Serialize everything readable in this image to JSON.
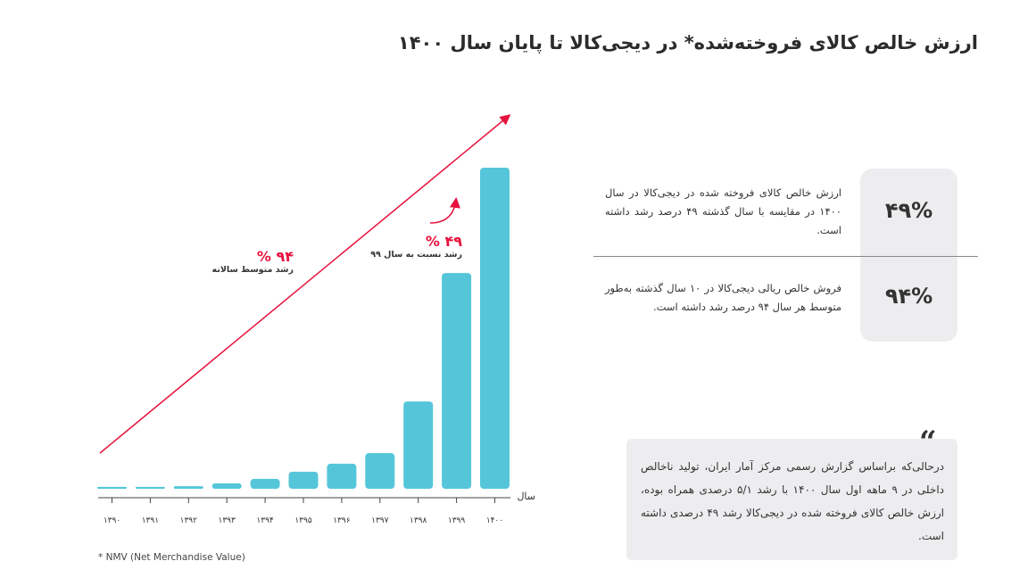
{
  "title": "ارزش خالص کالای فروخته‌شده* در دیجی‌کالا تا پایان سال ۱۴۰۰",
  "chart_data": {
    "type": "bar",
    "categories": [
      "۱۳۹۰",
      "۱۳۹۱",
      "۱۳۹۲",
      "۱۳۹۳",
      "۱۳۹۴",
      "۱۳۹۵",
      "۱۳۹۶",
      "۱۳۹۷",
      "۱۳۹۸",
      "۱۳۹۹",
      "۱۴۰۰"
    ],
    "values": [
      0.6,
      0.6,
      0.8,
      1.7,
      3.1,
      5.3,
      7.8,
      11.1,
      27.2,
      67.2,
      100
    ],
    "xlabel": "سال",
    "ylabel": "",
    "ylim": [
      0,
      100
    ],
    "grid": false,
    "bar_color": "#55c6d9",
    "trend_color": "#e6123d",
    "annotations": [
      {
        "value": "۹۴ %",
        "label": "رشد متوسط سالانه"
      },
      {
        "value": "۴۹ %",
        "label": "رشد نسبت به سال ۹۹"
      }
    ]
  },
  "stats": [
    {
      "value": "۴۹%",
      "text": "ارزش خالص کالای فروخته شده در دیجی‌کالا در سال ۱۴۰۰ در مقایسه با سال گذشته ۴۹ درصد رشد داشته است."
    },
    {
      "value": "۹۴%",
      "text": "فروش خالص ریالی دیجی‌کالا در ۱۰ سال گذشته به‌طور متوسط هر سال ۹۴ درصد رشد داشته است."
    }
  ],
  "quote": {
    "mark": "“",
    "text": "درحالی‌که براساس گزارش رسمی مرکز آمار ایران، تولید ناخالص داخلی در ۹ ماهه اول سال ۱۴۰۰ با رشد ۵/۱ درصدی همراه بوده، ارزش خالص کالای فروخته شده در دیجی‌کالا رشد ۴۹ درصدی داشته است."
  },
  "footnote": "* NMV (Net Merchandise Value)"
}
